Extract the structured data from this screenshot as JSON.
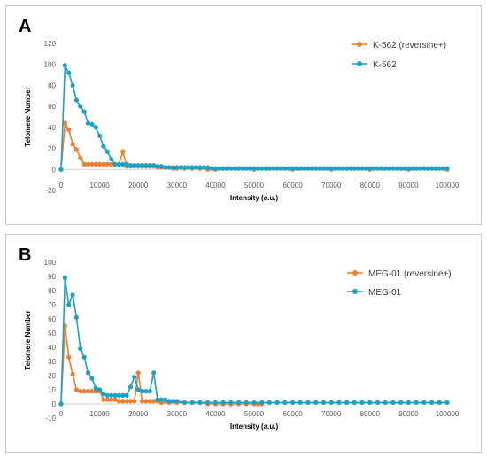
{
  "panels": [
    {
      "letter": "A"
    },
    {
      "letter": "B"
    }
  ],
  "chart_data": [
    {
      "type": "line",
      "panel": "A",
      "xlabel": "Intensity (a.u.)",
      "ylabel": "Telomere Number",
      "xlim": [
        0,
        100000
      ],
      "ylim": [
        -20,
        120
      ],
      "xticks": [
        0,
        10000,
        20000,
        30000,
        40000,
        50000,
        60000,
        70000,
        80000,
        90000,
        100000
      ],
      "yticks": [
        -20,
        0,
        20,
        40,
        60,
        80,
        100,
        120
      ],
      "grid": false,
      "legend_position": "top-right",
      "colors": {
        "K-562 (reversine+)": "#ED7D31",
        "K-562": "#1BA1C4"
      },
      "series": [
        {
          "name": "K-562 (reversine+)",
          "x": [
            0,
            1000,
            2000,
            3000,
            4000,
            5000,
            6000,
            7000,
            8000,
            9000,
            10000,
            11000,
            12000,
            13000,
            14000,
            15000,
            16000,
            17000,
            18000,
            19000,
            20000,
            21000,
            22000,
            23000,
            24000,
            25000,
            26000,
            27000,
            28000,
            29000,
            30000,
            32000,
            34000,
            36000,
            38000,
            40000,
            50000,
            60000,
            70000,
            80000,
            90000,
            100000
          ],
          "y": [
            0,
            44,
            38,
            24,
            19,
            11,
            5,
            5,
            5,
            5,
            5,
            5,
            5,
            5,
            5,
            5,
            17,
            3,
            3,
            3,
            3,
            3,
            3,
            3,
            3,
            2,
            2,
            2,
            2,
            1,
            1,
            1,
            1,
            1,
            0,
            0,
            0,
            0,
            0,
            0,
            0,
            0
          ]
        },
        {
          "name": "K-562",
          "x": [
            0,
            1000,
            2000,
            3000,
            4000,
            5000,
            6000,
            7000,
            8000,
            9000,
            10000,
            11000,
            12000,
            13000,
            14000,
            15000,
            16000,
            17000,
            18000,
            19000,
            20000,
            21000,
            22000,
            23000,
            24000,
            25000,
            26000,
            27000,
            28000,
            29000,
            30000,
            31000,
            32000,
            33000,
            34000,
            35000,
            36000,
            37000,
            38000,
            39000,
            40000,
            41000,
            42000,
            43000,
            44000,
            45000,
            46000,
            47000,
            48000,
            49000,
            50000,
            51000,
            52000,
            53000,
            54000,
            55000,
            56000,
            57000,
            58000,
            59000,
            60000,
            61000,
            62000,
            63000,
            64000,
            65000,
            66000,
            67000,
            68000,
            69000,
            70000,
            71000,
            72000,
            73000,
            74000,
            75000,
            76000,
            77000,
            78000,
            79000,
            80000,
            81000,
            82000,
            83000,
            84000,
            85000,
            86000,
            87000,
            88000,
            89000,
            90000,
            91000,
            92000,
            93000,
            94000,
            95000,
            96000,
            97000,
            98000,
            99000,
            100000
          ],
          "y": [
            0,
            99,
            92,
            80,
            66,
            60,
            55,
            44,
            43,
            40,
            32,
            22,
            17,
            10,
            5,
            5,
            5,
            5,
            4,
            4,
            4,
            4,
            4,
            4,
            4,
            3,
            3,
            2,
            2,
            2,
            2,
            2,
            2,
            2,
            2,
            2,
            2,
            2,
            2,
            1,
            1,
            1,
            1,
            1,
            1,
            1,
            1,
            1,
            1,
            1,
            1,
            1,
            1,
            1,
            1,
            1,
            1,
            1,
            1,
            1,
            1,
            1,
            1,
            1,
            1,
            1,
            1,
            1,
            1,
            1,
            1,
            1,
            1,
            1,
            1,
            1,
            1,
            1,
            1,
            1,
            1,
            1,
            1,
            1,
            1,
            1,
            1,
            1,
            1,
            1,
            1,
            1,
            1,
            1,
            1,
            1,
            1,
            1,
            1,
            1,
            1
          ]
        }
      ]
    },
    {
      "type": "line",
      "panel": "B",
      "xlabel": "Intensity (a.u.)",
      "ylabel": "Telomere Number",
      "xlim": [
        0,
        100000
      ],
      "ylim": [
        -10,
        100
      ],
      "xticks": [
        0,
        10000,
        20000,
        30000,
        40000,
        50000,
        60000,
        70000,
        80000,
        90000,
        100000
      ],
      "yticks": [
        -10,
        0,
        10,
        20,
        30,
        40,
        50,
        60,
        70,
        80,
        90,
        100
      ],
      "grid": false,
      "legend_position": "top-right",
      "colors": {
        "MEG-01 (reversine+)": "#ED7D31",
        "MEG-01": "#1BA1C4"
      },
      "series": [
        {
          "name": "MEG-01 (reversine+)",
          "x": [
            0,
            1000,
            2000,
            3000,
            4000,
            5000,
            6000,
            7000,
            8000,
            9000,
            10000,
            11000,
            12000,
            13000,
            14000,
            15000,
            16000,
            17000,
            18000,
            19000,
            20000,
            21000,
            22000,
            23000,
            24000,
            25000,
            26000,
            28000,
            30000,
            32000,
            34000,
            36000,
            38000,
            40000,
            42000,
            44000,
            46000,
            48000,
            50000,
            51000,
            52000
          ],
          "y": [
            0,
            55,
            33,
            21,
            10,
            9,
            9,
            9,
            9,
            9,
            9,
            3,
            3,
            3,
            3,
            2,
            2,
            2,
            2,
            2,
            22,
            2,
            2,
            2,
            2,
            2,
            1,
            1,
            1,
            1,
            1,
            1,
            0,
            0,
            0,
            0,
            0,
            0,
            0,
            0,
            0
          ]
        },
        {
          "name": "MEG-01",
          "x": [
            0,
            1000,
            2000,
            3000,
            4000,
            5000,
            6000,
            7000,
            8000,
            9000,
            10000,
            11000,
            12000,
            13000,
            14000,
            15000,
            16000,
            17000,
            18000,
            19000,
            20000,
            21000,
            22000,
            23000,
            24000,
            25000,
            26000,
            27000,
            28000,
            29000,
            30000,
            32000,
            34000,
            36000,
            38000,
            40000,
            42000,
            44000,
            46000,
            48000,
            50000,
            52000,
            54000,
            56000,
            58000,
            60000,
            62000,
            64000,
            66000,
            68000,
            70000,
            72000,
            74000,
            76000,
            78000,
            80000,
            82000,
            84000,
            86000,
            88000,
            90000,
            92000,
            94000,
            96000,
            98000,
            100000
          ],
          "y": [
            0,
            89,
            70,
            77,
            61,
            39,
            33,
            22,
            18,
            11,
            10,
            7,
            6,
            6,
            6,
            6,
            6,
            6,
            12,
            19,
            10,
            9,
            9,
            9,
            22,
            3,
            3,
            3,
            2,
            2,
            2,
            1,
            1,
            1,
            1,
            1,
            1,
            1,
            1,
            1,
            1,
            1,
            1,
            1,
            1,
            1,
            1,
            1,
            1,
            1,
            1,
            1,
            1,
            1,
            1,
            1,
            1,
            1,
            1,
            1,
            1,
            1,
            1,
            1,
            1,
            1
          ]
        }
      ]
    }
  ]
}
